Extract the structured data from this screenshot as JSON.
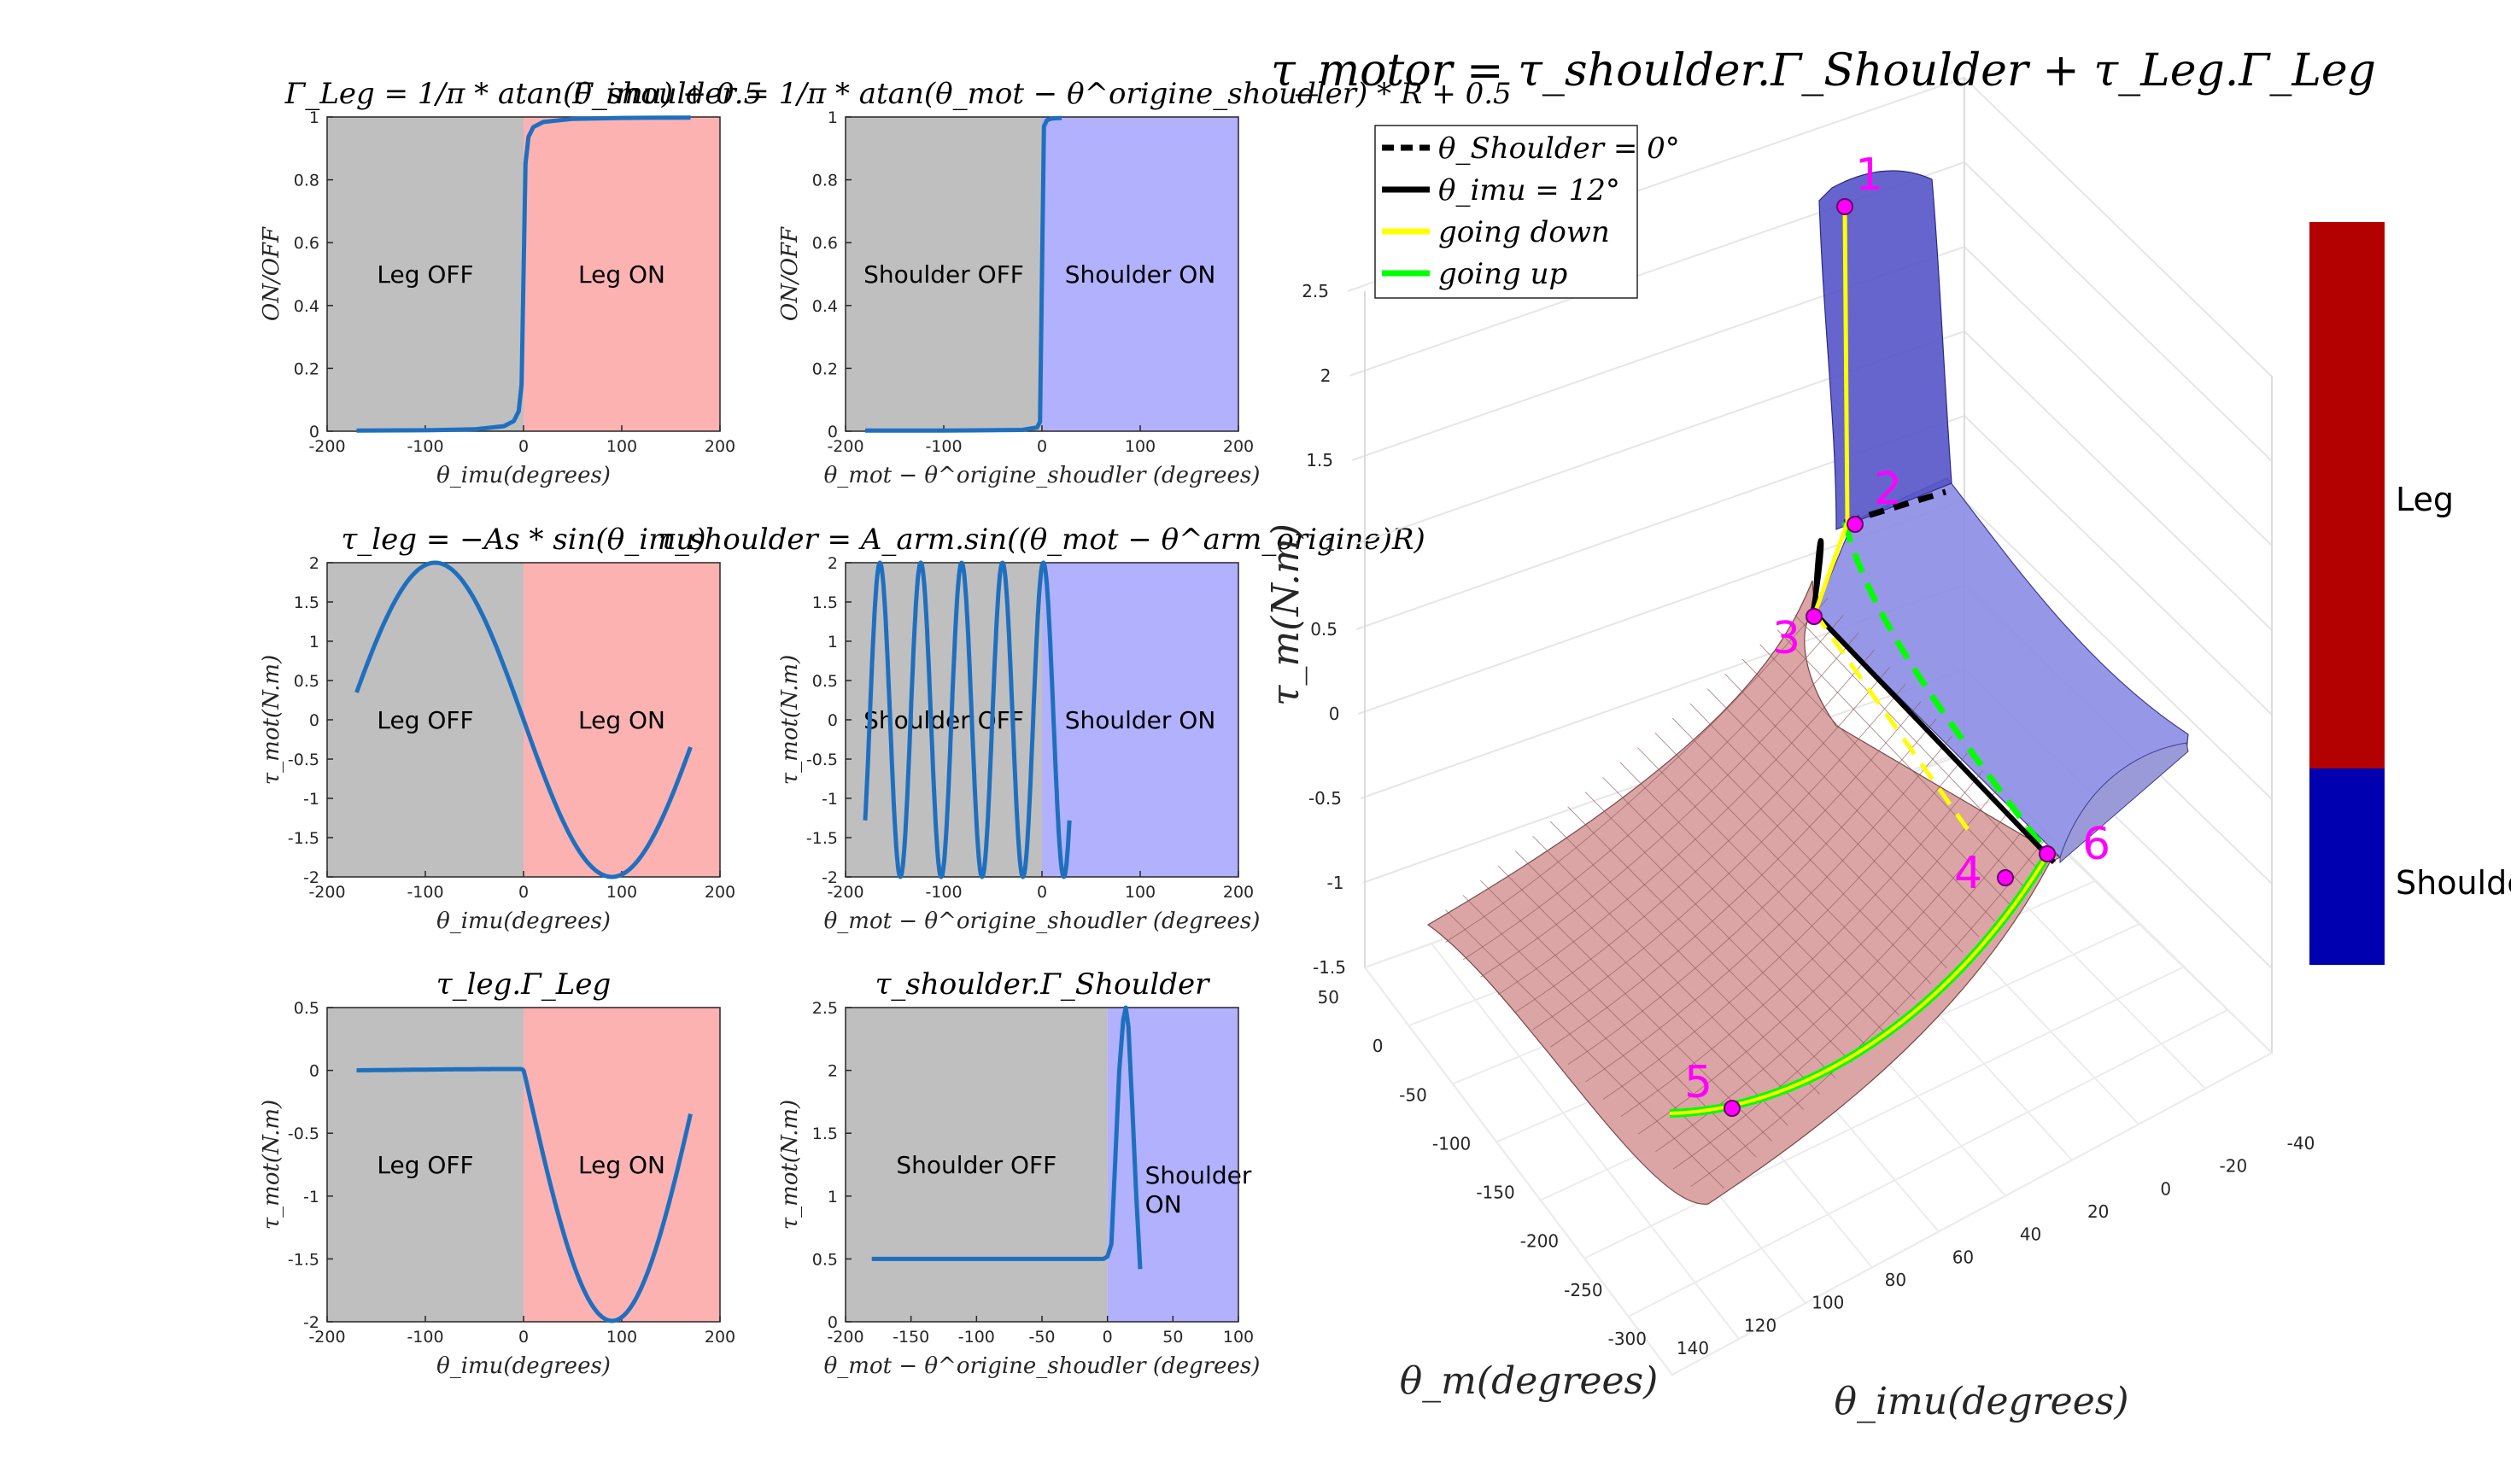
{
  "figure": {
    "main_title": "τ_motor = τ_shoulder.Γ_Shoulder + τ_Leg.Γ_Leg"
  },
  "colors": {
    "leg_off_bg": "#bfbfbf",
    "leg_on_bg": "#fdb2b2",
    "shoulder_on_bg": "#b1b1fd",
    "curve": "#1f6fbf",
    "colorbar_leg": "#b30000",
    "colorbar_shoulder": "#0000b0",
    "label_magenta": "#ff00ff",
    "going_down": "#ffff00",
    "going_up": "#00ff00",
    "surface_leg": "#d9a0a0",
    "surface_shoulder": "#8c8ce6"
  },
  "chart_data": [
    {
      "id": "gamma_leg",
      "type": "line",
      "title": "Γ_Leg = 1/π * atan(θ_imu) + 0.5",
      "xlabel": "θ_imu(degrees)",
      "ylabel": "ON/OFF",
      "xlim": [
        -200,
        200
      ],
      "ylim": [
        0,
        1
      ],
      "xticks": [
        -200,
        -100,
        0,
        100,
        200
      ],
      "yticks": [
        0,
        0.2,
        0.4,
        0.6,
        0.8,
        1
      ],
      "regions": [
        {
          "label": "Leg OFF",
          "from": -200,
          "to": 0,
          "color": "#bfbfbf"
        },
        {
          "label": "Leg ON",
          "from": 0,
          "to": 200,
          "color": "#fdb2b2"
        }
      ],
      "series": [
        {
          "x": [
            -170,
            -100,
            -50,
            -20,
            -10,
            -5,
            -2,
            0,
            2,
            5,
            10,
            20,
            50,
            100,
            170
          ],
          "y": [
            0.002,
            0.003,
            0.006,
            0.016,
            0.032,
            0.063,
            0.148,
            0.5,
            0.852,
            0.937,
            0.968,
            0.984,
            0.994,
            0.997,
            0.998
          ]
        }
      ]
    },
    {
      "id": "gamma_shoulder",
      "type": "line",
      "title": "Γ_shoulder = 1/π * atan(θ_mot − θ^origine_shoudler) * R + 0.5",
      "xlabel": "θ_mot − θ^origine_shoudler (degrees)",
      "ylabel": "ON/OFF",
      "xlim": [
        -200,
        200
      ],
      "ylim": [
        0,
        1
      ],
      "xticks": [
        -200,
        -100,
        0,
        100,
        200
      ],
      "yticks": [
        0,
        0.2,
        0.4,
        0.6,
        0.8,
        1
      ],
      "regions": [
        {
          "label": "Shoulder OFF",
          "from": -200,
          "to": 0,
          "color": "#bfbfbf"
        },
        {
          "label": "Shoulder ON",
          "from": 0,
          "to": 200,
          "color": "#b1b1fd"
        }
      ],
      "series": [
        {
          "x": [
            -180,
            -100,
            -20,
            -5,
            -2,
            0,
            2,
            5,
            10,
            20
          ],
          "y": [
            0.002,
            0.002,
            0.004,
            0.012,
            0.03,
            0.5,
            0.97,
            0.99,
            0.995,
            0.997
          ]
        }
      ]
    },
    {
      "id": "tau_leg",
      "type": "line",
      "title": "τ_leg = −As * sin(θ_imu)",
      "xlabel": "θ_imu(degrees)",
      "ylabel": "τ_mot(N.m)",
      "xlim": [
        -200,
        200
      ],
      "ylim": [
        -2,
        2
      ],
      "xticks": [
        -200,
        -100,
        0,
        100,
        200
      ],
      "yticks": [
        -2,
        -1.5,
        -1,
        -0.5,
        0,
        0.5,
        1,
        1.5,
        2
      ],
      "regions": [
        {
          "label": "Leg OFF",
          "from": -200,
          "to": 0,
          "color": "#bfbfbf"
        },
        {
          "label": "Leg ON",
          "from": 0,
          "to": 200,
          "color": "#fdb2b2"
        }
      ],
      "amplitude": 2,
      "x_range": [
        -170,
        170
      ]
    },
    {
      "id": "tau_shoulder",
      "type": "line",
      "title": "τ_shoulder = A_arm.sin((θ_mot − θ^arm_origine)R)",
      "xlabel": "θ_mot − θ^origine_shoudler (degrees)",
      "ylabel": "τ_mot(N.m)",
      "xlim": [
        -200,
        200
      ],
      "ylim": [
        -2,
        2
      ],
      "xticks": [
        -200,
        -100,
        0,
        100,
        200
      ],
      "yticks": [
        -2,
        -1.5,
        -1,
        -0.5,
        0,
        0.5,
        1,
        1.5,
        2
      ],
      "regions": [
        {
          "label": "Shoulder OFF",
          "from": -200,
          "to": 0,
          "color": "#bfbfbf"
        },
        {
          "label": "Shoulder ON",
          "from": 0,
          "to": 200,
          "color": "#b1b1fd"
        }
      ],
      "amplitude": 2,
      "x_range": [
        -180,
        28
      ],
      "peaks": [
        -165,
        -123,
        -82,
        -40,
        14
      ]
    },
    {
      "id": "tau_leg_gamma",
      "type": "line",
      "title": "τ_leg.Γ_Leg",
      "xlabel": "θ_imu(degrees)",
      "ylabel": "τ_mot(N.m)",
      "xlim": [
        -200,
        200
      ],
      "ylim": [
        -2,
        0.5
      ],
      "xticks": [
        -200,
        -100,
        0,
        100,
        200
      ],
      "yticks": [
        -2,
        -1.5,
        -1,
        -0.5,
        0,
        0.5
      ],
      "regions": [
        {
          "label": "Leg OFF",
          "from": -200,
          "to": 0,
          "color": "#bfbfbf"
        },
        {
          "label": "Leg ON",
          "from": 0,
          "to": 200,
          "color": "#fdb2b2"
        }
      ],
      "x_range": [
        -170,
        170
      ]
    },
    {
      "id": "tau_shoulder_gamma",
      "type": "line",
      "title": "τ_shoulder.Γ_Shoulder",
      "xlabel": "θ_mot − θ^origine_shoudler (degrees)",
      "ylabel": "τ_mot(N.m)",
      "xlim": [
        -200,
        100
      ],
      "ylim": [
        0,
        2.5
      ],
      "xticks": [
        -200,
        -150,
        -100,
        -50,
        0,
        50,
        100
      ],
      "yticks": [
        0,
        0.5,
        1,
        1.5,
        2,
        2.5
      ],
      "regions": [
        {
          "label": "Shoulder OFF",
          "from": -200,
          "to": 0,
          "color": "#bfbfbf"
        },
        {
          "label": "Shoulder ON",
          "from": 0,
          "to": 100,
          "color": "#b1b1fd"
        }
      ],
      "series": [
        {
          "x": [
            -180,
            -100,
            -20,
            -3,
            0,
            3,
            6,
            9,
            12,
            14,
            16,
            19,
            22,
            25
          ],
          "y": [
            0.5,
            0.5,
            0.5,
            0.5,
            0.52,
            0.62,
            1.3,
            2.0,
            2.4,
            2.5,
            2.35,
            1.7,
            1.0,
            0.42
          ]
        }
      ]
    },
    {
      "id": "surface3d",
      "type": "surface",
      "title": "τ_motor = τ_shoulder.Γ_Shoulder + τ_Leg.Γ_Leg",
      "zlabel": "τ_m(N.m)",
      "xlabel": "θ_m(degrees)",
      "ylabel": "θ_imu(degrees)",
      "zticks": [
        -1.5,
        -1,
        -0.5,
        0,
        0.5,
        1,
        1.5,
        2,
        2.5
      ],
      "theta_m_ticks": [
        50,
        0,
        -50,
        -100,
        -150,
        -200,
        -250,
        -300
      ],
      "theta_imu_ticks": [
        140,
        120,
        100,
        80,
        60,
        40,
        20,
        0,
        -20,
        -40
      ],
      "legend": [
        {
          "label": "θ_Shoulder = 0°",
          "style": "dashed",
          "color": "#000000"
        },
        {
          "label": "θ_imu = 12°",
          "style": "solid",
          "color": "#000000"
        },
        {
          "label": "going down",
          "style": "solid",
          "color": "#ffff00"
        },
        {
          "label": "going up",
          "style": "solid",
          "color": "#00ff00"
        }
      ],
      "points": [
        "1",
        "2",
        "3",
        "4",
        "5",
        "6"
      ],
      "colorbar": [
        {
          "label": "Leg",
          "color": "#b30000"
        },
        {
          "label": "Shoulder",
          "color": "#0000b0"
        }
      ]
    }
  ]
}
